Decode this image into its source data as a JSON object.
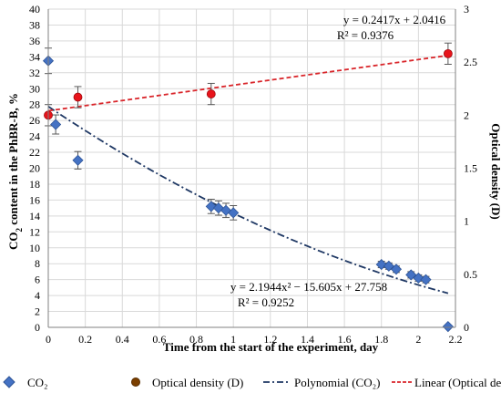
{
  "chart_data": {
    "type": "scatter",
    "xlabel": "Time from the start of the experiment, day",
    "ylabel_prefix": "CO",
    "ylabel_sub": "2",
    "ylabel_suffix": " content in the PhBR-B, %",
    "y2label": "Optical density (D)",
    "xlim": [
      0,
      2.2
    ],
    "ylim": [
      0,
      40
    ],
    "y2lim": [
      0,
      3
    ],
    "x_ticks": [
      "0",
      "0.2",
      "0.4",
      "0.6",
      "0.8",
      "1",
      "1.2",
      "1.4",
      "1.6",
      "1.8",
      "2",
      "2.2"
    ],
    "y_ticks": [
      "0",
      "2",
      "4",
      "6",
      "8",
      "10",
      "12",
      "14",
      "16",
      "18",
      "20",
      "22",
      "24",
      "26",
      "28",
      "30",
      "32",
      "34",
      "36",
      "38",
      "40"
    ],
    "y2_ticks": [
      "0",
      "0.5",
      "1",
      "1.5",
      "2",
      "2.5",
      "3"
    ],
    "grid": true,
    "legend_position": "bottom",
    "colors": {
      "co2": "#4472C4",
      "co2_edge": "#2F5597",
      "od": "#E8141B",
      "od_edge": "#9E0B0F",
      "poly": "#1F3864",
      "linear": "#D9262B",
      "grid": "#d9d9d9",
      "error": "#595959"
    },
    "series": [
      {
        "name": "CO₂",
        "axis": "left",
        "marker": "diamond",
        "x": [
          0.0,
          0.04,
          0.16,
          0.88,
          0.92,
          0.96,
          1.0,
          1.8,
          1.84,
          1.88,
          1.96,
          2.0,
          2.04,
          2.16
        ],
        "y": [
          33.5,
          25.5,
          21.0,
          15.2,
          15.0,
          14.7,
          14.4,
          7.9,
          7.7,
          7.3,
          6.6,
          6.2,
          6.0,
          0.1
        ],
        "err": [
          1.6,
          1.2,
          1.1,
          0.9,
          0.9,
          0.9,
          0.9,
          0.4,
          0.4,
          0.4,
          0.4,
          0.4,
          0.4,
          0
        ]
      },
      {
        "name": "Optical density (D)",
        "axis": "right",
        "marker": "circle",
        "x": [
          0.0,
          0.16,
          0.88,
          2.16
        ],
        "y": [
          2.0,
          2.17,
          2.2,
          2.58
        ],
        "err": [
          0.1,
          0.1,
          0.1,
          0.1
        ]
      }
    ],
    "trendlines": [
      {
        "name": "Polynomial (CO₂)",
        "axis": "left",
        "kind": "poly2",
        "coef": [
          2.1944,
          -15.605,
          27.758
        ],
        "x_range": [
          0,
          2.16
        ],
        "equation": "y = 2.1944x² − 15.605x + 27.758",
        "r2": "R² = 0.9252"
      },
      {
        "name": "Linear (Optical density (D))",
        "axis": "right",
        "kind": "linear",
        "coef": [
          0.2417,
          2.0416
        ],
        "x_range": [
          0,
          2.16
        ],
        "equation": "y = 0.2417x + 2.0416",
        "r2": "R² = 0.9376"
      }
    ],
    "legend": [
      {
        "label": "CO₂",
        "symbol": "diamond"
      },
      {
        "label": "Optical density (D)",
        "symbol": "circle"
      },
      {
        "label": "Polynomial (CO₂)",
        "symbol": "dashdot"
      },
      {
        "label": "Linear (Optical density (D",
        "symbol": "dashed"
      }
    ]
  }
}
